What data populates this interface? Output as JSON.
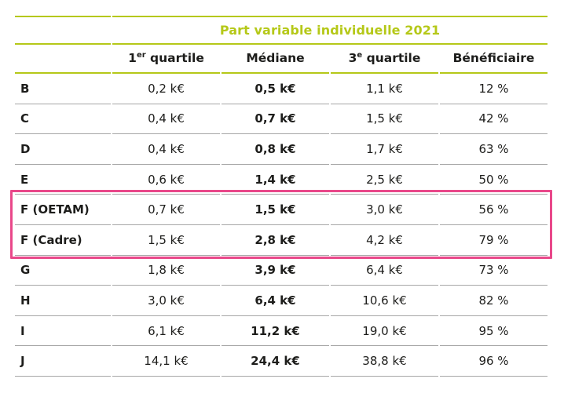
{
  "title": "Part variable individuelle 2021",
  "colors": {
    "accent_green": "#b5c818",
    "highlight_pink": "#e9488a",
    "text": "#1d1d1b",
    "separator_gray": "#a6a6a6"
  },
  "table": {
    "headers": [
      {
        "base": "1",
        "sup": "er",
        "rest": " quartile"
      },
      {
        "base": "Médiane",
        "sup": "",
        "rest": ""
      },
      {
        "base": "3",
        "sup": "e",
        "rest": " quartile"
      },
      {
        "base": "Bénéficiaire",
        "sup": "",
        "rest": ""
      }
    ],
    "rows": [
      {
        "label": "B",
        "q1": "0,2 k€",
        "median": "0,5 k€",
        "q3": "1,1 k€",
        "beneficiary": "12 %",
        "highlighted": false
      },
      {
        "label": "C",
        "q1": "0,4 k€",
        "median": "0,7 k€",
        "q3": "1,5 k€",
        "beneficiary": "42 %",
        "highlighted": false
      },
      {
        "label": "D",
        "q1": "0,4 k€",
        "median": "0,8 k€",
        "q3": "1,7 k€",
        "beneficiary": "63 %",
        "highlighted": false
      },
      {
        "label": "E",
        "q1": "0,6 k€",
        "median": "1,4 k€",
        "q3": "2,5 k€",
        "beneficiary": "50 %",
        "highlighted": false
      },
      {
        "label": "F (OETAM)",
        "q1": "0,7 k€",
        "median": "1,5 k€",
        "q3": "3,0 k€",
        "beneficiary": "56 %",
        "highlighted": true
      },
      {
        "label": "F (Cadre)",
        "q1": "1,5 k€",
        "median": "2,8 k€",
        "q3": "4,2 k€",
        "beneficiary": "79 %",
        "highlighted": true
      },
      {
        "label": "G",
        "q1": "1,8 k€",
        "median": "3,9 k€",
        "q3": "6,4 k€",
        "beneficiary": "73 %",
        "highlighted": false
      },
      {
        "label": "H",
        "q1": "3,0 k€",
        "median": "6,4 k€",
        "q3": "10,6 k€",
        "beneficiary": "82 %",
        "highlighted": false
      },
      {
        "label": "I",
        "q1": "6,1 k€",
        "median": "11,2 k€",
        "q3": "19,0 k€",
        "beneficiary": "95 %",
        "highlighted": false
      },
      {
        "label": "J",
        "q1": "14,1 k€",
        "median": "24,4 k€",
        "q3": "38,8 k€",
        "beneficiary": "96 %",
        "highlighted": false
      }
    ]
  }
}
